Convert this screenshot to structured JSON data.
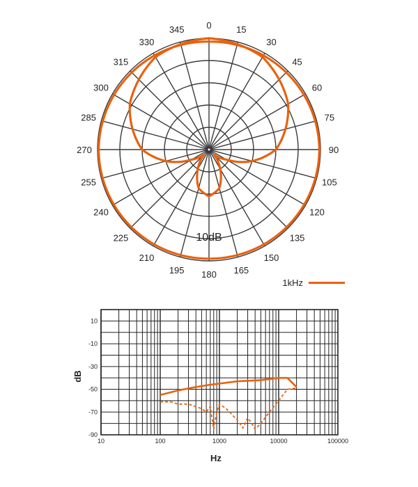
{
  "chart_data": [
    {
      "type": "polar",
      "angle_labels": [
        "0",
        "15",
        "30",
        "45",
        "60",
        "75",
        "90",
        "105",
        "120",
        "135",
        "150",
        "165",
        "180",
        "195",
        "210",
        "225",
        "240",
        "255",
        "270",
        "285",
        "300",
        "315",
        "330",
        "345"
      ],
      "ring_label": "10dB",
      "rings": 5,
      "series": [
        {
          "name": "1kHz",
          "color": "#e8620f",
          "pattern": "supercardioid",
          "points": [
            {
              "angle": 0,
              "r": 1.0
            },
            {
              "angle": 30,
              "r": 0.96
            },
            {
              "angle": 60,
              "r": 0.82
            },
            {
              "angle": 90,
              "r": 0.6
            },
            {
              "angle": 105,
              "r": 0.4
            },
            {
              "angle": 120,
              "r": 0.18
            },
            {
              "angle": 135,
              "r": 0.06
            },
            {
              "angle": 150,
              "r": 0.2
            },
            {
              "angle": 165,
              "r": 0.36
            },
            {
              "angle": 180,
              "r": 0.42
            }
          ]
        },
        {
          "name": "",
          "color": "#e8620f",
          "pattern": "omni",
          "points": [
            {
              "angle": 0,
              "r": 0.97
            },
            {
              "angle": 90,
              "r": 0.99
            },
            {
              "angle": 180,
              "r": 0.98
            },
            {
              "angle": 270,
              "r": 0.99
            }
          ]
        }
      ],
      "legend": {
        "label": "1kHz",
        "placement": "bottom-right"
      }
    },
    {
      "type": "line",
      "xscale": "log",
      "xlim": [
        10,
        100000
      ],
      "ylim": [
        -90,
        20
      ],
      "x_ticks": [
        "10",
        "100",
        "1000",
        "10000",
        "100000"
      ],
      "y_ticks": [
        "10",
        "-10",
        "-30",
        "-50",
        "-70",
        "-90"
      ],
      "xlabel": "Hz",
      "ylabel": "dB",
      "grid": true,
      "series": [
        {
          "name": "",
          "style": "solid",
          "color": "#e8620f",
          "points": [
            [
              100,
              -55
            ],
            [
              200,
              -51
            ],
            [
              400,
              -48
            ],
            [
              700,
              -46
            ],
            [
              1000,
              -45
            ],
            [
              2000,
              -43
            ],
            [
              5000,
              -42
            ],
            [
              10000,
              -40
            ],
            [
              14000,
              -40
            ],
            [
              20000,
              -48
            ]
          ]
        },
        {
          "name": "",
          "style": "dashed",
          "color": "#e8620f",
          "points": [
            [
              100,
              -61
            ],
            [
              150,
              -61
            ],
            [
              200,
              -63
            ],
            [
              300,
              -63
            ],
            [
              500,
              -67
            ],
            [
              600,
              -70
            ],
            [
              700,
              -65
            ],
            [
              800,
              -85
            ],
            [
              900,
              -70
            ],
            [
              1000,
              -63
            ],
            [
              1300,
              -67
            ],
            [
              2000,
              -77
            ],
            [
              2500,
              -84
            ],
            [
              3000,
              -75
            ],
            [
              3500,
              -80
            ],
            [
              4000,
              -85
            ],
            [
              5000,
              -80
            ],
            [
              7000,
              -70
            ],
            [
              10000,
              -60
            ],
            [
              14000,
              -50
            ],
            [
              20000,
              -49
            ]
          ]
        }
      ]
    }
  ]
}
